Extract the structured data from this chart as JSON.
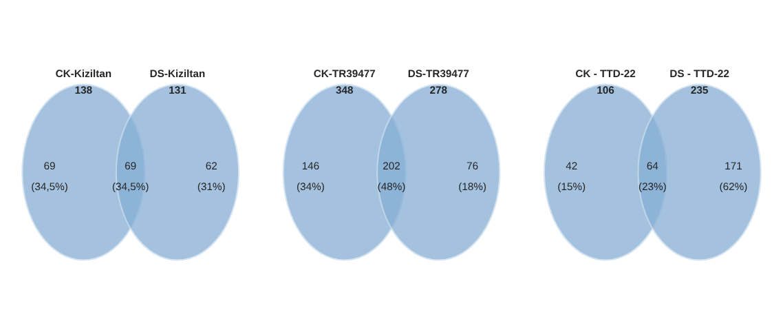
{
  "chart_data": [
    {
      "type": "other",
      "categories": [
        null,
        null,
        null
      ],
      "annotations": [
        "CK-Kiziltan",
        "DS-Kiziltan",
        "(34,5%)",
        "(34,5%)",
        "(31%)"
      ],
      "totals": [
        "138",
        "131"
      ],
      "values": [
        69,
        69,
        62
      ],
      "data_labels": true,
      "color": "#86aed4"
    },
    {
      "type": "other",
      "categories": [
        null,
        null,
        null
      ],
      "annotations": [
        "CK-TR39477",
        "DS-TR39477",
        "(34%)",
        "(48%)",
        "(18%)"
      ],
      "totals": [
        "348",
        "278"
      ],
      "values": [
        146,
        202,
        76
      ],
      "data_labels": true,
      "color": "#86aed4"
    },
    {
      "type": "other",
      "categories": [
        null,
        null,
        null
      ],
      "annotations": [
        "CK - TTD-22",
        "DS - TTD-22",
        "(15%)",
        "(23%)",
        "(62%)"
      ],
      "totals": [
        "106",
        "235"
      ],
      "values": [
        42,
        64,
        171
      ],
      "data_labels": true,
      "color": "#86aed4"
    }
  ]
}
